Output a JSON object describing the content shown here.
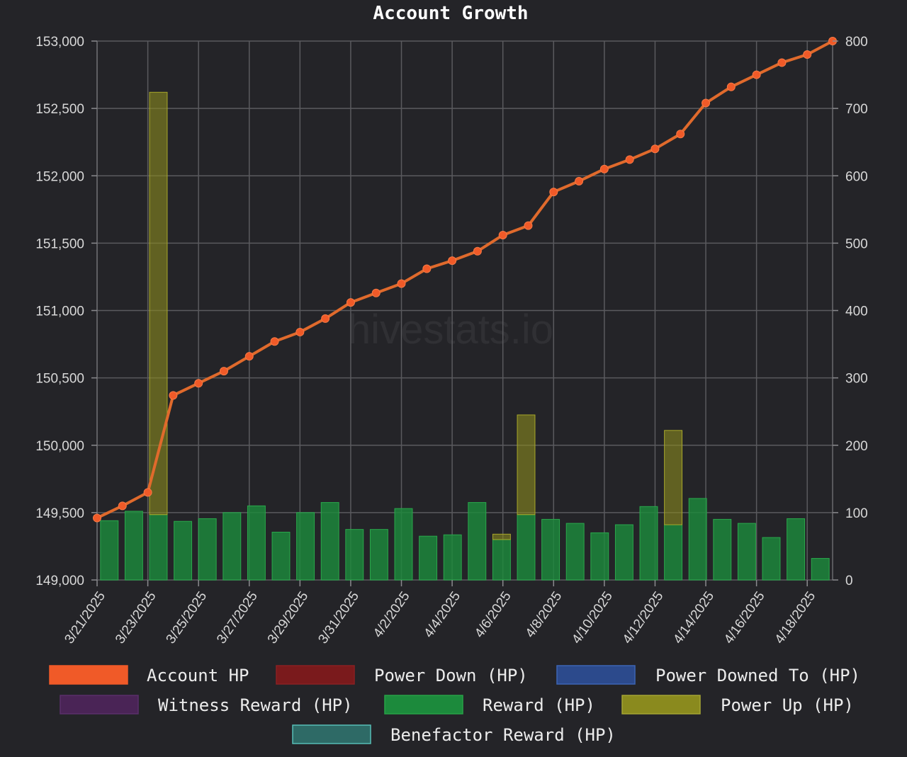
{
  "chart_data": {
    "type": "bar",
    "title": "Account Growth",
    "watermark": "hivestats.io",
    "grid": true,
    "legend_position": "bottom",
    "y_left": {
      "ylim": [
        149000,
        153000
      ],
      "ticks": [
        "149,000",
        "149,500",
        "150,000",
        "150,500",
        "151,000",
        "151,500",
        "152,000",
        "152,500",
        "153,000"
      ]
    },
    "y_right": {
      "ylim": [
        0,
        800
      ],
      "ticks": [
        "0",
        "100",
        "200",
        "300",
        "400",
        "500",
        "600",
        "700",
        "800"
      ]
    },
    "x_dates": [
      "3/21/2025",
      "3/22/2025",
      "3/23/2025",
      "3/24/2025",
      "3/25/2025",
      "3/26/2025",
      "3/27/2025",
      "3/28/2025",
      "3/29/2025",
      "3/30/2025",
      "3/31/2025",
      "4/1/2025",
      "4/2/2025",
      "4/3/2025",
      "4/4/2025",
      "4/5/2025",
      "4/6/2025",
      "4/7/2025",
      "4/8/2025",
      "4/9/2025",
      "4/10/2025",
      "4/11/2025",
      "4/12/2025",
      "4/13/2025",
      "4/14/2025",
      "4/15/2025",
      "4/16/2025",
      "4/17/2025",
      "4/18/2025",
      "4/19/2025"
    ],
    "x_tick_labels": [
      "3/21/2025",
      "3/23/2025",
      "3/25/2025",
      "3/27/2025",
      "3/29/2025",
      "3/31/2025",
      "4/2/2025",
      "4/4/2025",
      "4/6/2025",
      "4/8/2025",
      "4/10/2025",
      "4/12/2025",
      "4/14/2025",
      "4/16/2025",
      "4/18/2025"
    ],
    "series": [
      {
        "name": "Account HP",
        "axis": "left",
        "kind": "line",
        "color": "#f05a28",
        "line_color": "#e06a2c",
        "values": [
          149460,
          149550,
          149650,
          150370,
          150460,
          150550,
          150660,
          150770,
          150840,
          150940,
          151060,
          151130,
          151200,
          151310,
          151370,
          151440,
          151560,
          151630,
          151880,
          151960,
          152050,
          152120,
          152200,
          152310,
          152540,
          152660,
          152750,
          152840,
          152900,
          153000
        ]
      },
      {
        "name": "Power Down (HP)",
        "axis": "right",
        "kind": "bar",
        "color": "#7a1a1c",
        "values": []
      },
      {
        "name": "Power Downed To (HP)",
        "axis": "right",
        "kind": "bar",
        "color": "#2c4a8c",
        "values": []
      },
      {
        "name": "Witness Reward (HP)",
        "axis": "right",
        "kind": "bar",
        "color": "#4a2456",
        "values": []
      },
      {
        "name": "Reward (HP)",
        "axis": "right",
        "kind": "bar",
        "color": "#1c8a3c",
        "values": [
          88,
          102,
          97,
          87,
          91,
          100,
          110,
          71,
          100,
          115,
          75,
          75,
          106,
          65,
          67,
          115,
          60,
          97,
          90,
          84,
          70,
          82,
          109,
          82,
          121,
          90,
          84,
          63,
          91,
          32
        ]
      },
      {
        "name": "Power Up (HP)",
        "axis": "right",
        "kind": "bar",
        "stack_on": "Reward (HP)",
        "color": "#8a8a1e",
        "values": [
          0,
          0,
          627,
          0,
          0,
          0,
          0,
          0,
          0,
          0,
          0,
          0,
          0,
          0,
          0,
          0,
          8,
          148,
          0,
          0,
          0,
          0,
          0,
          140,
          0,
          0,
          0,
          0,
          0,
          0
        ]
      },
      {
        "name": "Benefactor Reward (HP)",
        "axis": "right",
        "kind": "bar",
        "color": "#2e6a66",
        "values": []
      }
    ]
  }
}
